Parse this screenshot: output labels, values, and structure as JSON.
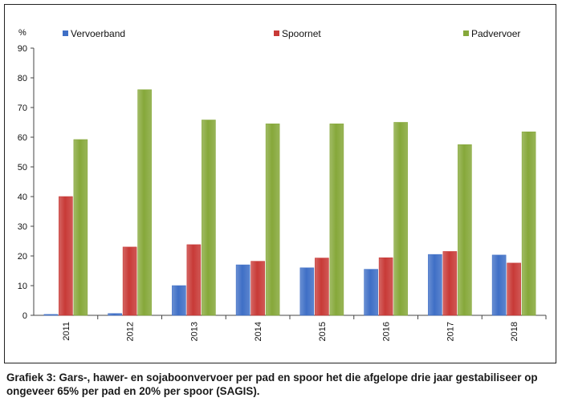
{
  "colors": {
    "Vervoerband": "#3f6fc6",
    "Spoornet": "#c83a37",
    "Padvervoer": "#86a83a"
  },
  "caption": "Grafiek 3: Gars-, hawer- en sojaboonvervoer per pad en spoor het die afgelope drie jaar gestabiliseer op ongeveer 65% per pad en 20% per spoor (SAGIS).",
  "chart_data": {
    "type": "bar",
    "ylabel": "%",
    "ylim": [
      0,
      90
    ],
    "yticks": [
      0,
      10,
      20,
      30,
      40,
      50,
      60,
      70,
      80,
      90
    ],
    "grid": false,
    "legend_position": "top",
    "categories": [
      "2011",
      "2012",
      "2013",
      "2014",
      "2015",
      "2016",
      "2017",
      "2018"
    ],
    "series": [
      {
        "name": "Vervoerband",
        "values": [
          0.3,
          0.6,
          10,
          17,
          16,
          15.5,
          20.5,
          20.3
        ]
      },
      {
        "name": "Spoornet",
        "values": [
          40,
          23,
          23.8,
          18.2,
          19.3,
          19.4,
          21.5,
          17.6
        ]
      },
      {
        "name": "Padvervoer",
        "values": [
          59.2,
          76,
          65.8,
          64.5,
          64.5,
          65,
          57.5,
          61.8
        ]
      }
    ]
  }
}
